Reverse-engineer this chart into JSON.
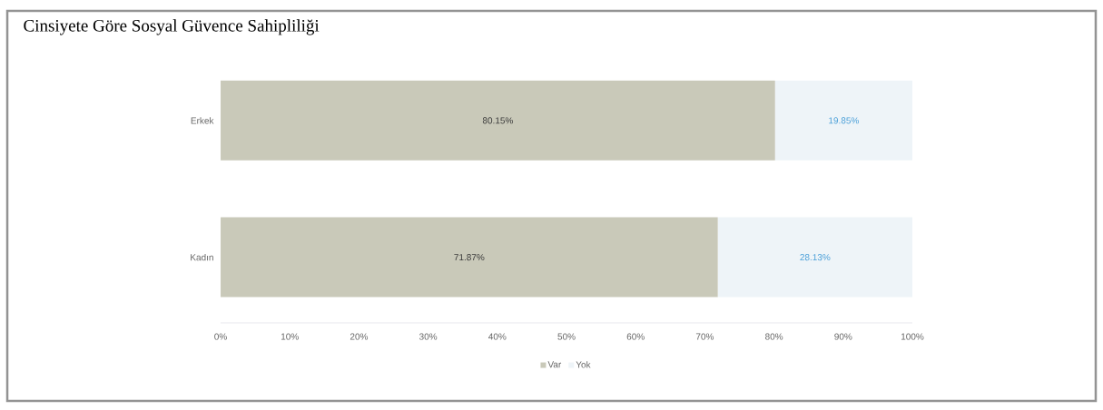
{
  "chart_data": {
    "type": "bar",
    "title": "Cinsiyete Göre Sosyal Güvence Sahipliliği",
    "orientation": "horizontal",
    "stacked": true,
    "categories": [
      "Erkek",
      "Kadın"
    ],
    "series": [
      {
        "name": "Var",
        "color": "#c9c9b9",
        "values": [
          80.15,
          71.87
        ],
        "value_labels": [
          "80.15%",
          "71.87%"
        ]
      },
      {
        "name": "Yok",
        "color": "#eef4f8",
        "values": [
          19.85,
          28.13
        ],
        "value_labels": [
          "19.85%",
          "28.13%"
        ]
      }
    ],
    "xlim": [
      0,
      100
    ],
    "xticks": [
      {
        "value": 0,
        "label": "0%"
      },
      {
        "value": 10,
        "label": "10%"
      },
      {
        "value": 20,
        "label": "20%"
      },
      {
        "value": 30,
        "label": "30%"
      },
      {
        "value": 40,
        "label": "40%"
      },
      {
        "value": 50,
        "label": "50%"
      },
      {
        "value": 60,
        "label": "60%"
      },
      {
        "value": 70,
        "label": "70%"
      },
      {
        "value": 80,
        "label": "80%"
      },
      {
        "value": 90,
        "label": "90%"
      },
      {
        "value": 100,
        "label": "100%"
      }
    ],
    "legend": "bottom"
  }
}
